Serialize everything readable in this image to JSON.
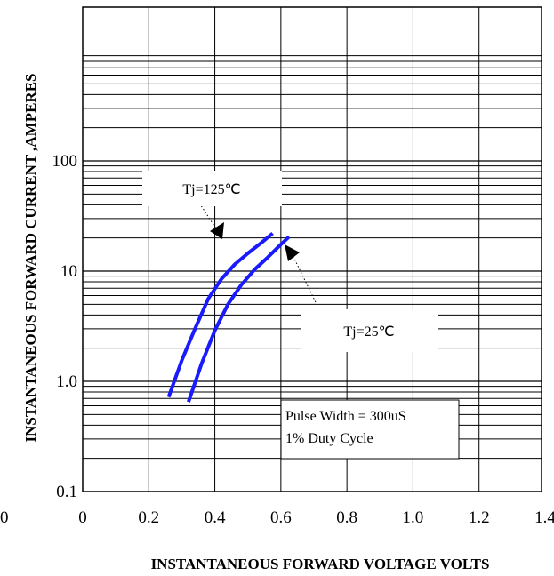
{
  "chart_data": {
    "type": "line",
    "xlabel": "INSTANTANEOUS FORWARD VOLTAGE VOLTS",
    "ylabel": "INSTANTANEOUS FORWARD CURRENT ,AMPERES",
    "xlim": [
      0,
      1.4
    ],
    "ylim": [
      0.1,
      1000
    ],
    "y_scale": "log",
    "x_ticks": [
      "0",
      "0.2",
      "0.4",
      "0.6",
      "0.8",
      "1.0",
      "1.2",
      "1.4"
    ],
    "x_tick_values": [
      0,
      0.2,
      0.4,
      0.6,
      0.8,
      1.0,
      1.2,
      1.4
    ],
    "y_ticks": [
      "0.1",
      "1.0",
      "10",
      "100"
    ],
    "y_tick_values": [
      0.1,
      1,
      10,
      100
    ],
    "stray_label": "0",
    "grid": true,
    "series": [
      {
        "name": "Tj=125℃",
        "color": "#1a1aff",
        "x": [
          0.26,
          0.3,
          0.34,
          0.38,
          0.42,
          0.46,
          0.5,
          0.54,
          0.575
        ],
        "y": [
          0.72,
          1.55,
          3.0,
          5.6,
          8.5,
          11.5,
          14.5,
          18.0,
          22.0
        ]
      },
      {
        "name": "Tj=25℃",
        "color": "#1a1aff",
        "x": [
          0.32,
          0.36,
          0.4,
          0.44,
          0.48,
          0.52,
          0.56,
          0.6,
          0.625
        ],
        "y": [
          0.65,
          1.45,
          2.9,
          5.0,
          7.5,
          10.3,
          13.3,
          17.5,
          20.5
        ]
      }
    ],
    "annotations": [
      {
        "text": "Tj=125℃",
        "points_to": "Tj=125℃"
      },
      {
        "text": "Tj=25℃",
        "points_to": "Tj=25℃"
      },
      {
        "lines": [
          "Pulse Width = 300uS",
          "1% Duty Cycle"
        ]
      }
    ]
  }
}
